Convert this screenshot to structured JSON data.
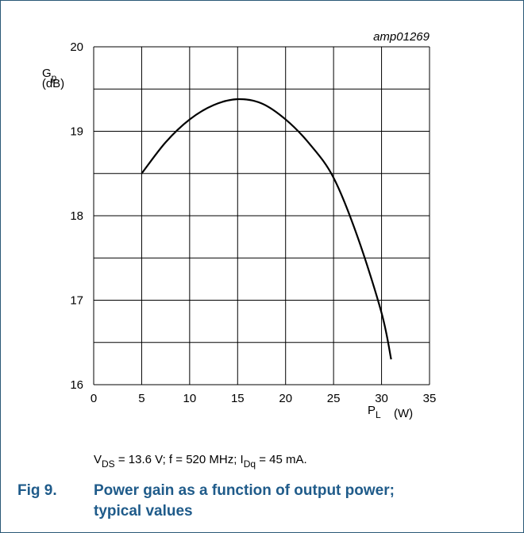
{
  "chart_data": {
    "type": "line",
    "code": "amp01269",
    "xlabel": {
      "main": "P",
      "sub": "L",
      "unit": "(W)"
    },
    "ylabel": {
      "main": "G",
      "sub": "p",
      "unit": "(dB)"
    },
    "x": [
      5,
      7.5,
      10,
      12.5,
      15,
      17.5,
      20,
      22.5,
      25,
      27.5,
      30,
      31
    ],
    "series": [
      {
        "color": "#000000",
        "values": [
          18.5,
          18.87,
          19.14,
          19.31,
          19.38,
          19.33,
          19.14,
          18.85,
          18.45,
          17.75,
          16.85,
          16.3
        ]
      }
    ],
    "xlim": [
      0,
      35
    ],
    "xticks": [
      0,
      5,
      10,
      15,
      20,
      25,
      30,
      35
    ],
    "ylim": [
      16,
      20
    ],
    "yticks": [
      16,
      17,
      18,
      19,
      20
    ],
    "yminor": [
      16.5,
      17.5,
      18.5,
      19.5
    ],
    "grid": true,
    "note": [
      {
        "text": "V"
      },
      {
        "text": "DS",
        "sub": true
      },
      {
        "text": " = 13.6 V; f = 520 MHz; I"
      },
      {
        "text": "Dq",
        "sub": true
      },
      {
        "text": " = 45 mA."
      }
    ],
    "caption": {
      "label": "Fig 9.",
      "lines": [
        "Power gain as a function of output power;",
        "typical values"
      ]
    }
  }
}
